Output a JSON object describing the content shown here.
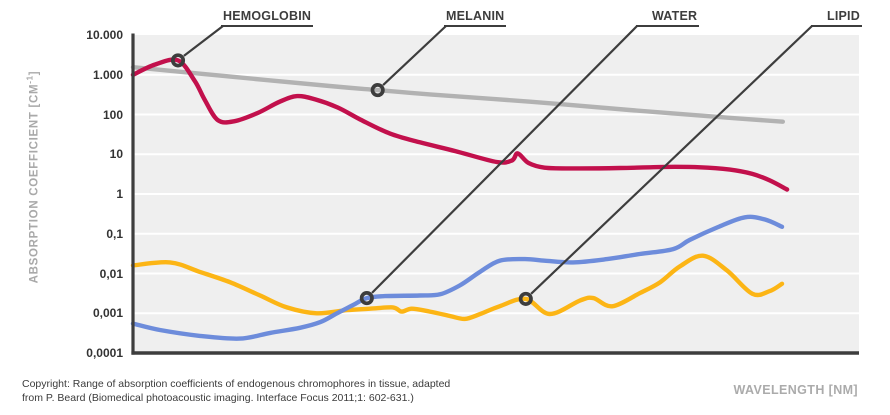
{
  "chart_data": {
    "type": "line",
    "title": "",
    "xlabel": "WAVELENGTH [NM]",
    "ylabel": "ABSORPTION COEFFICIENT [CM-1]",
    "ylabel_parts": {
      "main": "ABSORPTION COEFFICIENT [CM",
      "sup": "-1",
      "end": "]"
    },
    "x_axis": {
      "note": "no numeric tick labels shown in figure; x values below are fractions 0-1 of axis width",
      "unit": "nm"
    },
    "y_axis": {
      "scale": "log",
      "ylim": [
        0.0001,
        10000
      ],
      "tick_labels": [
        "10.000",
        "1.000",
        "100",
        "10",
        "1",
        "0,1",
        "0,01",
        "0,001",
        "0,0001"
      ]
    },
    "grid": "horizontal white lines at each decade",
    "legend": "inline labels with diagonal leader lines to ring markers",
    "series": [
      {
        "name": "HEMOGLOBIN",
        "color": "#c2104c",
        "points": [
          [
            0.0,
            1000
          ],
          [
            0.03,
            1800
          ],
          [
            0.062,
            2300
          ],
          [
            0.085,
            700
          ],
          [
            0.099,
            230
          ],
          [
            0.117,
            72
          ],
          [
            0.14,
            68
          ],
          [
            0.172,
            110
          ],
          [
            0.202,
            210
          ],
          [
            0.226,
            290
          ],
          [
            0.251,
            240
          ],
          [
            0.282,
            150
          ],
          [
            0.313,
            75
          ],
          [
            0.354,
            33
          ],
          [
            0.395,
            20
          ],
          [
            0.444,
            12
          ],
          [
            0.501,
            6.4
          ],
          [
            0.522,
            7.0
          ],
          [
            0.53,
            10.5
          ],
          [
            0.545,
            6.0
          ],
          [
            0.567,
            4.6
          ],
          [
            0.602,
            4.4
          ],
          [
            0.671,
            4.5
          ],
          [
            0.733,
            4.8
          ],
          [
            0.781,
            4.7
          ],
          [
            0.822,
            4.1
          ],
          [
            0.853,
            3.2
          ],
          [
            0.877,
            2.2
          ],
          [
            0.901,
            1.3
          ]
        ]
      },
      {
        "name": "MELANIN",
        "color": "#b2b2b2",
        "points": [
          [
            0.0,
            1550
          ],
          [
            0.134,
            900
          ],
          [
            0.271,
            520
          ],
          [
            0.337,
            410
          ],
          [
            0.409,
            320
          ],
          [
            0.547,
            210
          ],
          [
            0.684,
            130
          ],
          [
            0.795,
            90
          ],
          [
            0.895,
            66
          ]
        ]
      },
      {
        "name": "WATER",
        "color": "#6d8cdb",
        "points": [
          [
            0.0,
            0.00055
          ],
          [
            0.037,
            0.00038
          ],
          [
            0.092,
            0.00027
          ],
          [
            0.147,
            0.00023
          ],
          [
            0.189,
            0.00032
          ],
          [
            0.23,
            0.00043
          ],
          [
            0.258,
            0.0006
          ],
          [
            0.281,
            0.001
          ],
          [
            0.303,
            0.0016
          ],
          [
            0.322,
            0.0024
          ],
          [
            0.347,
            0.0027
          ],
          [
            0.395,
            0.0028
          ],
          [
            0.423,
            0.003
          ],
          [
            0.45,
            0.005
          ],
          [
            0.478,
            0.011
          ],
          [
            0.505,
            0.021
          ],
          [
            0.54,
            0.023
          ],
          [
            0.567,
            0.021
          ],
          [
            0.606,
            0.019
          ],
          [
            0.653,
            0.023
          ],
          [
            0.698,
            0.031
          ],
          [
            0.744,
            0.041
          ],
          [
            0.767,
            0.07
          ],
          [
            0.806,
            0.148
          ],
          [
            0.843,
            0.26
          ],
          [
            0.87,
            0.23
          ],
          [
            0.894,
            0.15
          ]
        ]
      },
      {
        "name": "LIPID",
        "color": "#fcb515",
        "points": [
          [
            0.0,
            0.016
          ],
          [
            0.051,
            0.019
          ],
          [
            0.092,
            0.011
          ],
          [
            0.134,
            0.006
          ],
          [
            0.175,
            0.0028
          ],
          [
            0.212,
            0.0014
          ],
          [
            0.253,
            0.001
          ],
          [
            0.295,
            0.0012
          ],
          [
            0.326,
            0.0013
          ],
          [
            0.358,
            0.0014
          ],
          [
            0.37,
            0.0011
          ],
          [
            0.384,
            0.0013
          ],
          [
            0.409,
            0.0011
          ],
          [
            0.437,
            0.00085
          ],
          [
            0.457,
            0.00072
          ],
          [
            0.478,
            0.00095
          ],
          [
            0.505,
            0.0015
          ],
          [
            0.541,
            0.0023
          ],
          [
            0.574,
            0.00096
          ],
          [
            0.616,
            0.0021
          ],
          [
            0.634,
            0.0024
          ],
          [
            0.66,
            0.0015
          ],
          [
            0.698,
            0.0032
          ],
          [
            0.726,
            0.006
          ],
          [
            0.753,
            0.015
          ],
          [
            0.785,
            0.028
          ],
          [
            0.818,
            0.012
          ],
          [
            0.853,
            0.0031
          ],
          [
            0.877,
            0.0036
          ],
          [
            0.894,
            0.0055
          ]
        ]
      }
    ],
    "annotations": [
      {
        "id": "hemoglobin",
        "label": "HEMOGLOBIN",
        "series": "HEMOGLOBIN",
        "x": 0.062,
        "value": 2300
      },
      {
        "id": "melanin",
        "label": "MELANIN",
        "series": "MELANIN",
        "x": 0.337,
        "value": 410
      },
      {
        "id": "water",
        "label": "WATER",
        "series": "WATER",
        "x": 0.322,
        "value": 0.0024
      },
      {
        "id": "lipid",
        "label": "LIPID",
        "series": "LIPID",
        "x": 0.541,
        "value": 0.0023
      }
    ]
  },
  "footer": {
    "line1": "Copyright: Range of absorption coefficients of endogenous chromophores in tissue, adapted",
    "line2": "from P. Beard (Biomedical photoacoustic imaging. Interface Focus 2011;1: 602-631.)"
  },
  "colors": {
    "axis": "#3d3d3d",
    "plot_background": "#efefef",
    "gridline": "#ffffff",
    "tick_text": "#333333",
    "muted_label": "#ababab",
    "footer_text": "#3b3b3b",
    "leader_and_marker": "#3d3d3d"
  }
}
